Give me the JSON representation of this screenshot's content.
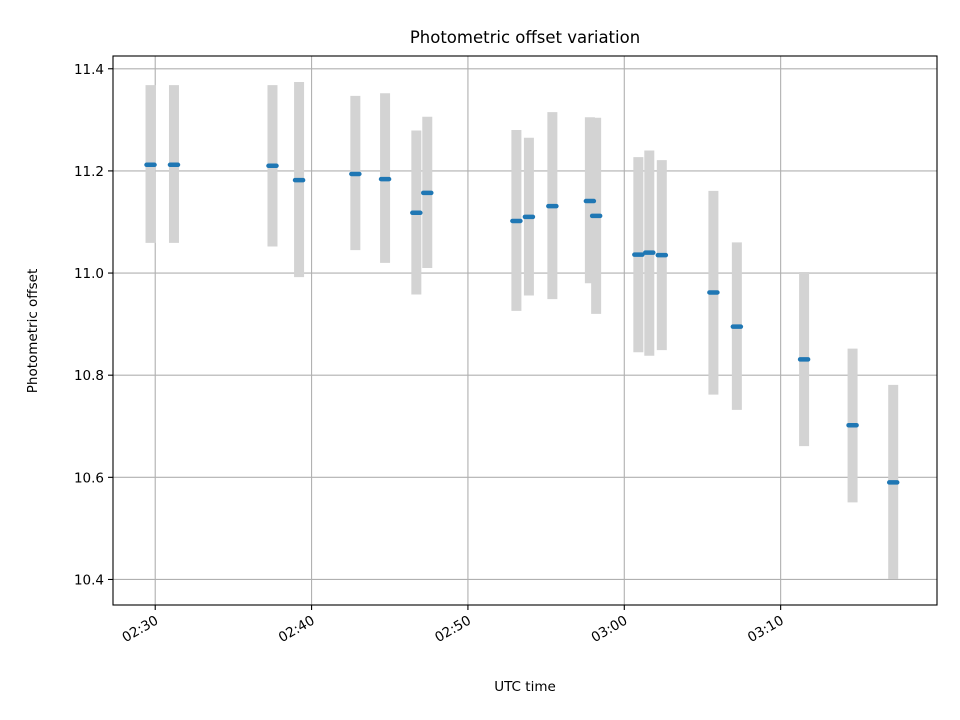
{
  "chart_data": {
    "type": "scatter",
    "title": "Photometric offset variation",
    "xlabel": "UTC time",
    "ylabel": "Photometric offset",
    "x_axis": "time (UTC, HH:MM)",
    "xlim": [
      "02:27:18",
      "03:20:00"
    ],
    "ylim": [
      10.35,
      11.425
    ],
    "xticks": [
      "02:30",
      "02:40",
      "02:50",
      "03:00",
      "03:10"
    ],
    "yticks": [
      10.4,
      10.6,
      10.8,
      11.0,
      11.2,
      11.4
    ],
    "ytick_labels": [
      "10.4",
      "10.6",
      "10.8",
      "11.0",
      "11.2",
      "11.4"
    ],
    "grid": true,
    "points": [
      {
        "time": "02:29:42",
        "value": 11.212,
        "low": 11.059,
        "high": 11.368
      },
      {
        "time": "02:31:12",
        "value": 11.212,
        "low": 11.059,
        "high": 11.368
      },
      {
        "time": "02:37:30",
        "value": 11.21,
        "low": 11.052,
        "high": 11.368
      },
      {
        "time": "02:39:12",
        "value": 11.182,
        "low": 10.992,
        "high": 11.374
      },
      {
        "time": "02:42:48",
        "value": 11.194,
        "low": 11.045,
        "high": 11.347
      },
      {
        "time": "02:44:42",
        "value": 11.184,
        "low": 11.02,
        "high": 11.352
      },
      {
        "time": "02:46:42",
        "value": 11.118,
        "low": 10.958,
        "high": 11.279
      },
      {
        "time": "02:47:24",
        "value": 11.157,
        "low": 11.01,
        "high": 11.306
      },
      {
        "time": "02:53:06",
        "value": 11.102,
        "low": 10.926,
        "high": 11.28
      },
      {
        "time": "02:53:54",
        "value": 11.11,
        "low": 10.956,
        "high": 11.265
      },
      {
        "time": "02:55:24",
        "value": 11.131,
        "low": 10.949,
        "high": 11.315
      },
      {
        "time": "02:57:48",
        "value": 11.141,
        "low": 10.98,
        "high": 11.305
      },
      {
        "time": "02:58:12",
        "value": 11.112,
        "low": 10.92,
        "high": 11.304
      },
      {
        "time": "03:00:54",
        "value": 11.036,
        "low": 10.845,
        "high": 11.227
      },
      {
        "time": "03:01:36",
        "value": 11.04,
        "low": 10.838,
        "high": 11.24
      },
      {
        "time": "03:02:24",
        "value": 11.035,
        "low": 10.849,
        "high": 11.221
      },
      {
        "time": "03:05:42",
        "value": 10.962,
        "low": 10.762,
        "high": 11.161
      },
      {
        "time": "03:07:12",
        "value": 10.895,
        "low": 10.732,
        "high": 11.06
      },
      {
        "time": "03:11:30",
        "value": 10.831,
        "low": 10.661,
        "high": 11.002
      },
      {
        "time": "03:14:36",
        "value": 10.702,
        "low": 10.551,
        "high": 10.852
      },
      {
        "time": "03:17:12",
        "value": 10.59,
        "low": 10.401,
        "high": 10.781
      }
    ],
    "colors": {
      "marker": "#1f77b4",
      "errorbar": "#d3d3d3",
      "grid": "#b0b0b0",
      "axes": "#000000"
    }
  }
}
